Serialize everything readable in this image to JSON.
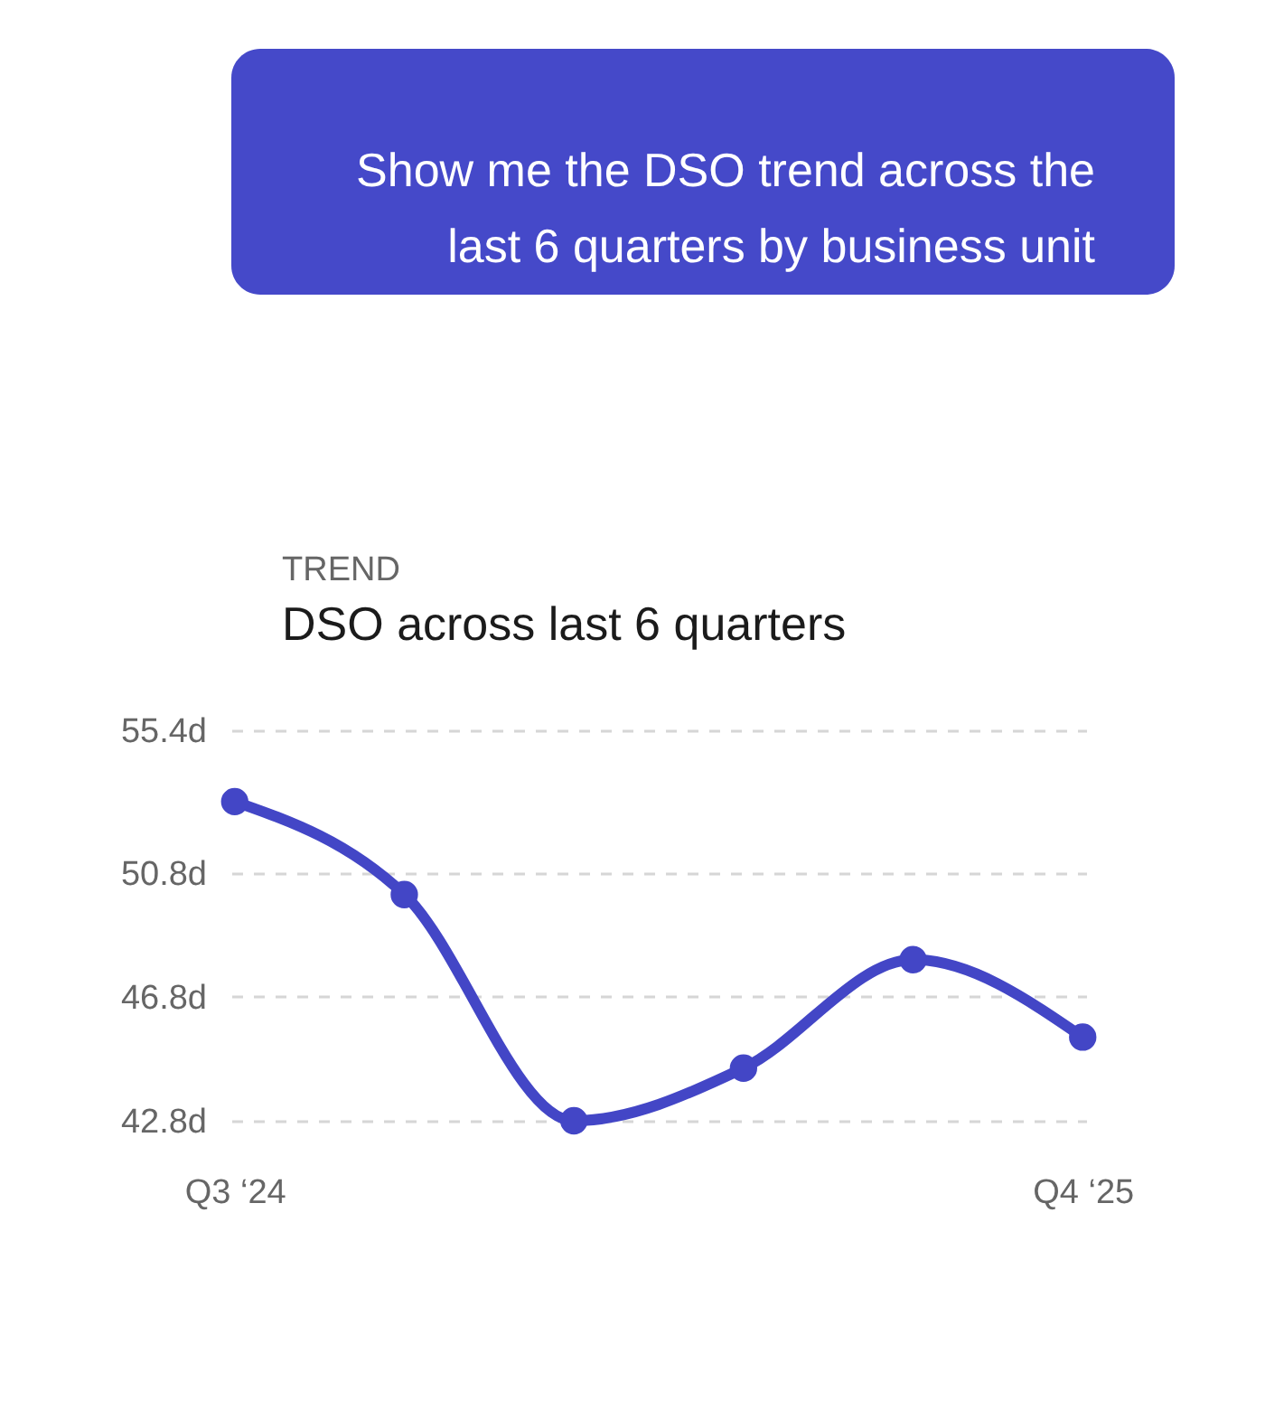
{
  "chart_data": {
    "type": "line",
    "title": "DSO across last 6 quarters",
    "annotations": [
      "Show me the DSO trend across the last 6 quarters by business unit",
      "TREND"
    ],
    "categories": [
      "Q3 ‘24",
      null,
      null,
      null,
      null,
      "Q4 ‘25"
    ],
    "series": [
      {
        "color": "#4346c6",
        "values": [
          53.1,
          50.1,
          42.8,
          44.5,
          48.0,
          45.5
        ]
      }
    ],
    "ylim": [
      42.8,
      55.4
    ],
    "yticks": [
      {
        "value": 42.8,
        "label": "42.8d"
      },
      {
        "value": 46.8,
        "label": "46.8d"
      },
      {
        "value": 50.8,
        "label": "50.8d"
      },
      {
        "value": 55.4,
        "label": "55.4d"
      }
    ],
    "grid": "y",
    "marker": "circle",
    "line_style": "solid"
  }
}
